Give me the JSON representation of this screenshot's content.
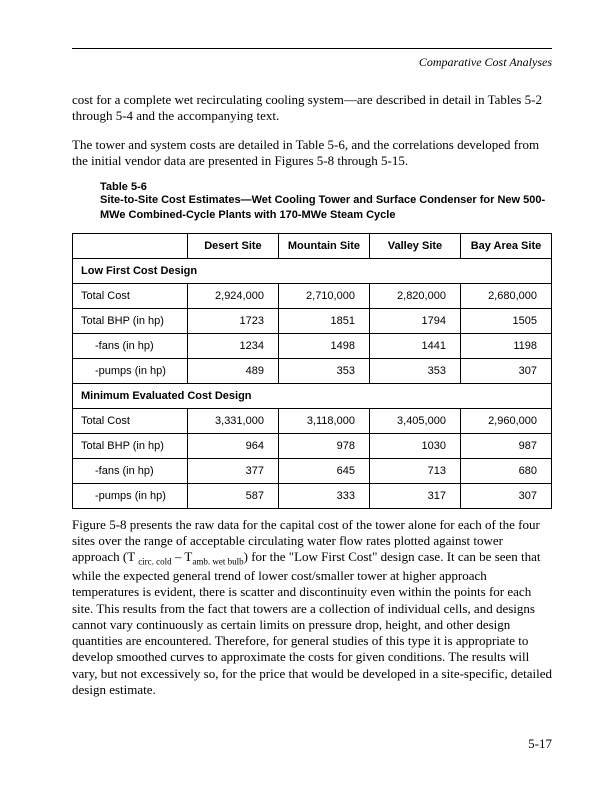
{
  "page": {
    "header_title": "Comparative Cost Analyses",
    "page_number": "5-17"
  },
  "paragraphs": {
    "p1": "cost for a complete wet recirculating cooling system—are described in detail in Tables 5-2 through 5-4 and the accompanying text.",
    "p2": "The tower and system costs are detailed in Table 5-6, and the correlations developed from the initial vendor data are presented in Figures 5-8 through 5-15."
  },
  "table_caption": {
    "number": "Table 5-6",
    "text": "Site-to-Site Cost Estimates—Wet Cooling Tower and Surface Condenser for New 500-MWe Combined-Cycle Plants with 170-MWe Steam Cycle"
  },
  "table": {
    "headers": {
      "blank": "",
      "c1": "Desert Site",
      "c2": "Mountain Site",
      "c3": "Valley Site",
      "c4": "Bay Area Site"
    },
    "section1": {
      "title": "Low First Cost Design",
      "rows": [
        {
          "label": "Total Cost",
          "indent": false,
          "c1": "2,924,000",
          "c2": "2,710,000",
          "c3": "2,820,000",
          "c4": "2,680,000"
        },
        {
          "label": "Total BHP (in hp)",
          "indent": false,
          "c1": "1723",
          "c2": "1851",
          "c3": "1794",
          "c4": "1505"
        },
        {
          "label": "-fans (in hp)",
          "indent": true,
          "c1": "1234",
          "c2": "1498",
          "c3": "1441",
          "c4": "1198"
        },
        {
          "label": "-pumps (in hp)",
          "indent": true,
          "c1": "489",
          "c2": "353",
          "c3": "353",
          "c4": "307"
        }
      ]
    },
    "section2": {
      "title": "Minimum Evaluated Cost Design",
      "rows": [
        {
          "label": "Total Cost",
          "indent": false,
          "c1": "3,331,000",
          "c2": "3,118,000",
          "c3": "3,405,000",
          "c4": "2,960,000"
        },
        {
          "label": "Total BHP (in hp)",
          "indent": false,
          "c1": "964",
          "c2": "978",
          "c3": "1030",
          "c4": "987"
        },
        {
          "label": "-fans (in hp)",
          "indent": true,
          "c1": "377",
          "c2": "645",
          "c3": "713",
          "c4": "680"
        },
        {
          "label": "-pumps (in hp)",
          "indent": true,
          "c1": "587",
          "c2": "333",
          "c3": "317",
          "c4": "307"
        }
      ]
    }
  },
  "figure_paragraph": {
    "part1": "Figure 5-8 presents the raw data for the capital cost of the tower alone for each of the four sites over the range of acceptable circulating water flow rates plotted against tower approach (T ",
    "sub1": "circ. cold",
    "part2": " – T",
    "sub2": "amb. wet bulb",
    "part3": ") for the \"Low First Cost\" design case. It can be seen that while the expected general trend of lower cost/smaller tower at higher approach temperatures is evident, there is scatter and discontinuity even within the points for each site. This results from the fact that towers are a collection of individual cells, and designs cannot vary continuously as certain limits on pressure drop, height, and other design quantities are encountered. Therefore, for general studies of this type it is appropriate to develop smoothed curves to approximate the costs for given conditions. The results will vary, but not excessively so, for the price that would be developed in a site-specific, detailed design estimate."
  }
}
